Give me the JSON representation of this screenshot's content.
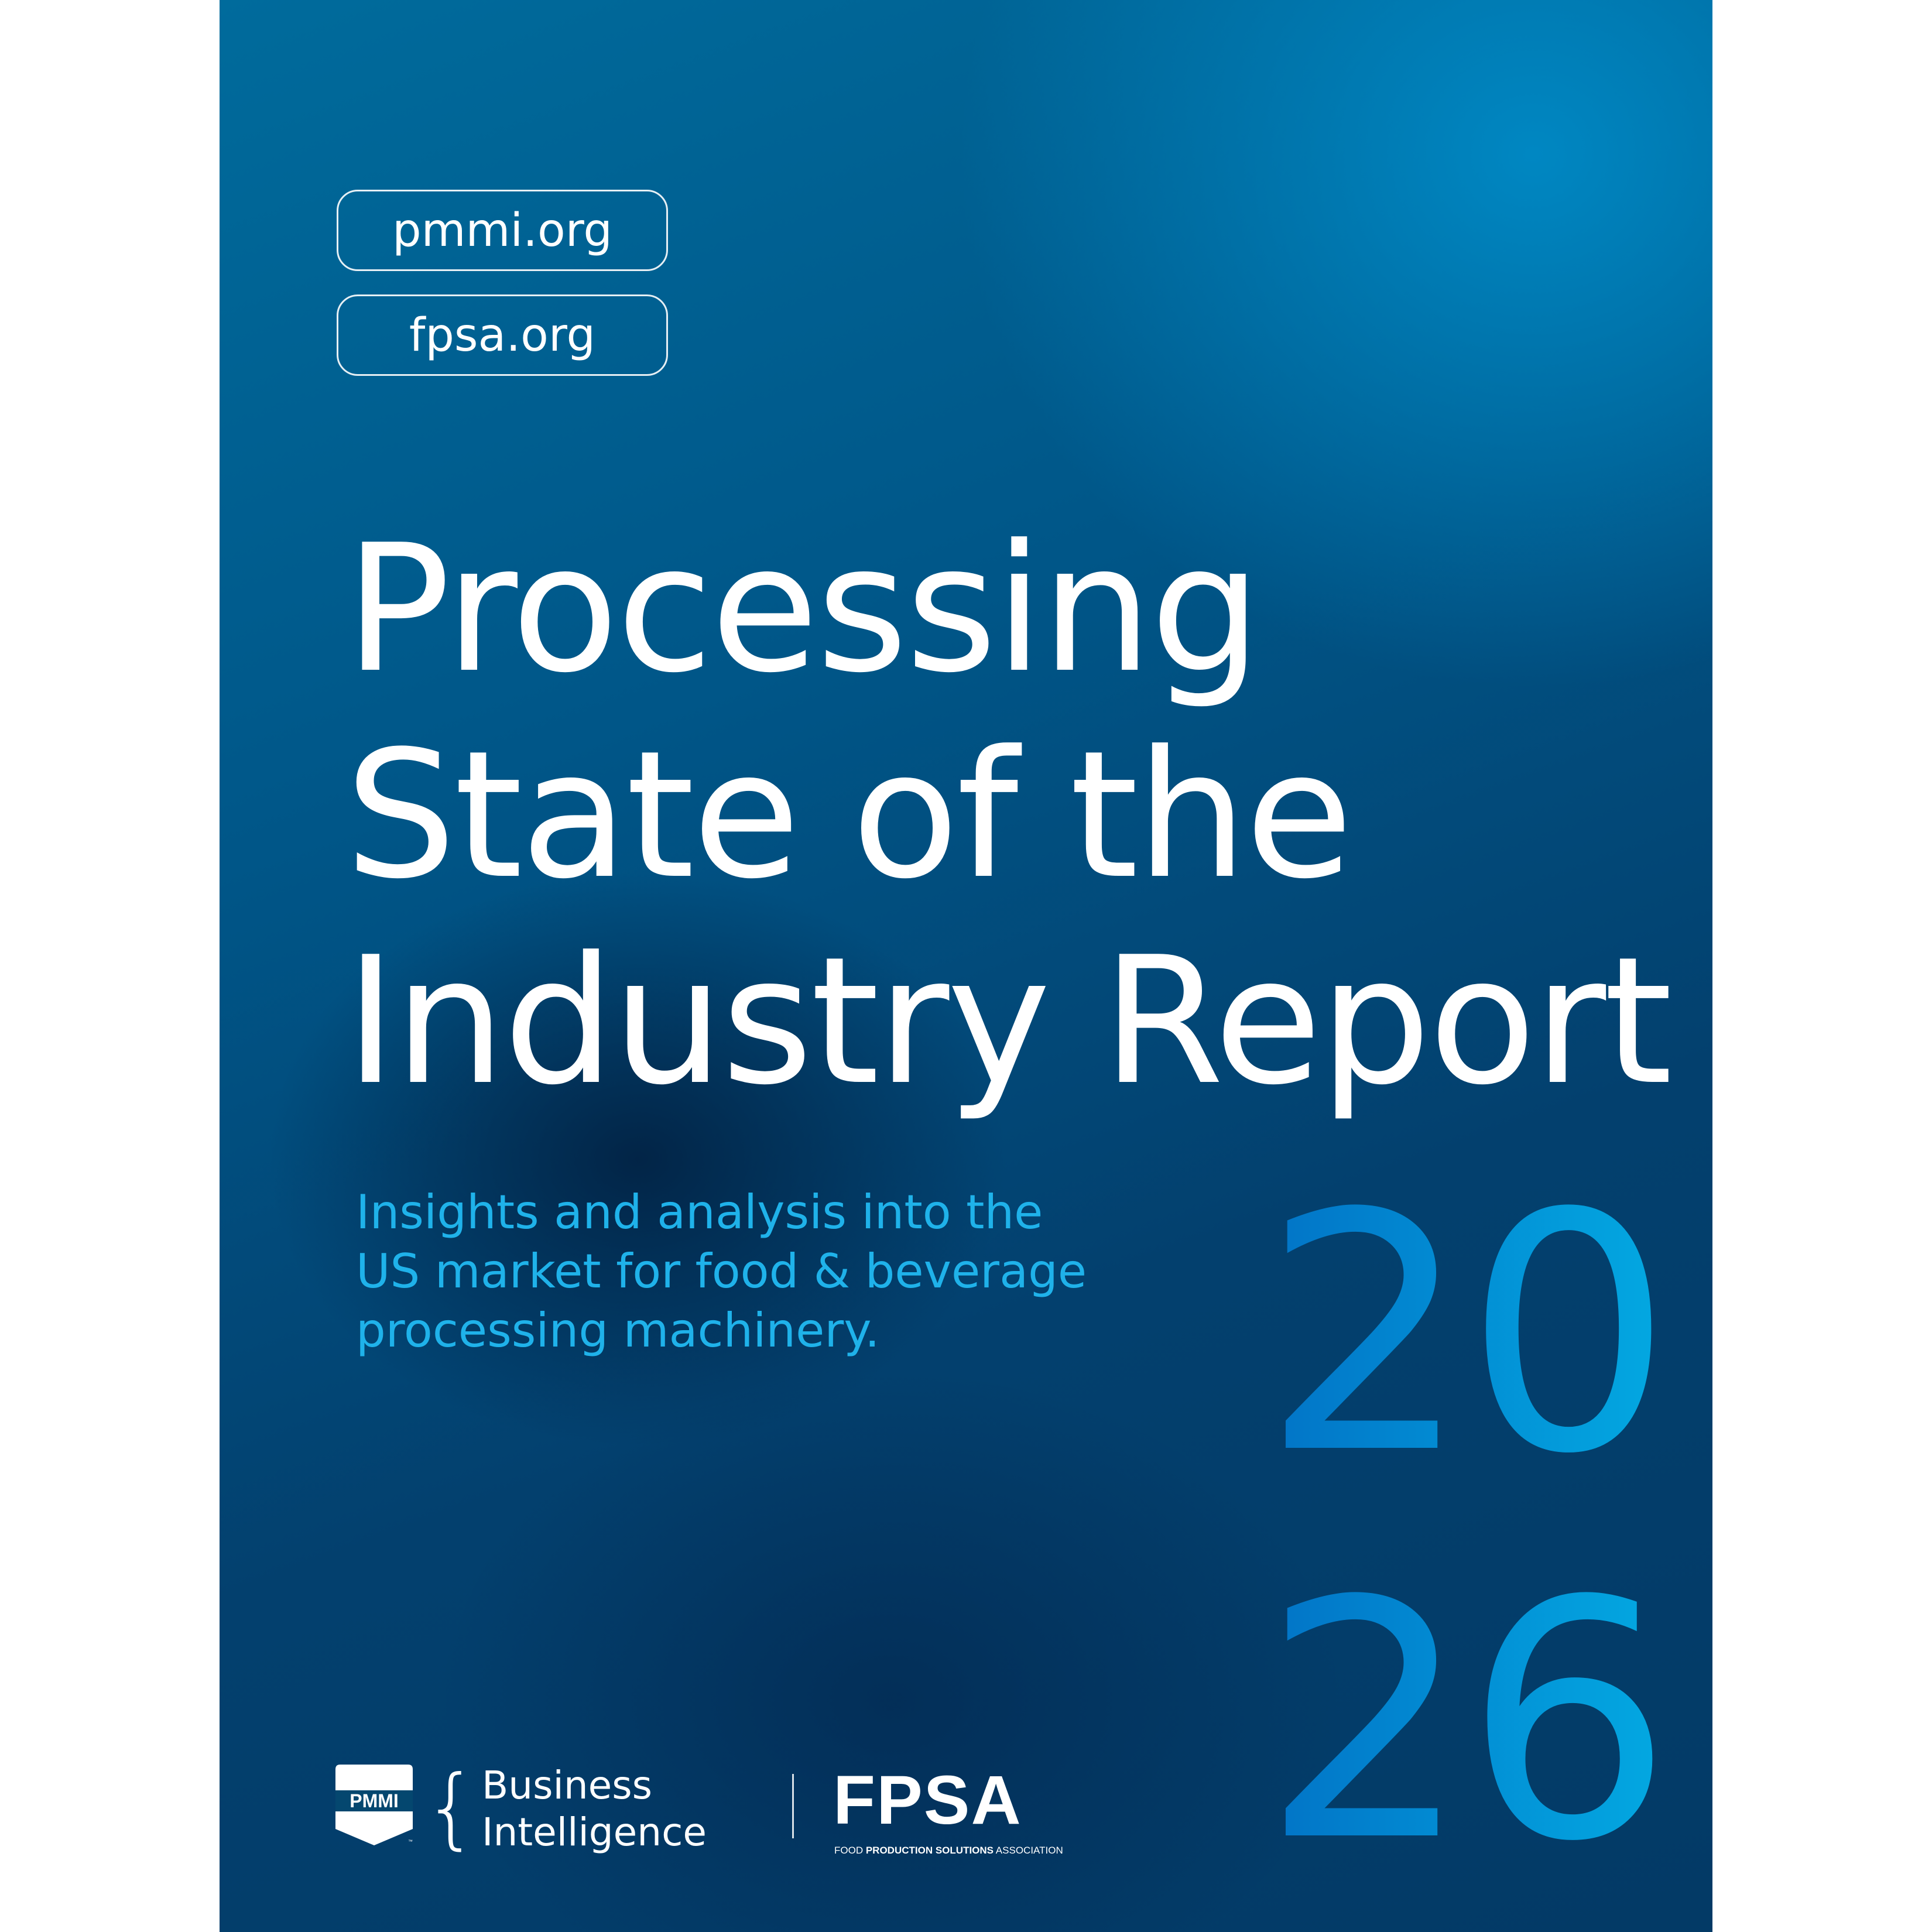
{
  "links": [
    "pmmi.org",
    "fpsa.org"
  ],
  "title_lines": [
    "Processing",
    "State of the",
    "Industry Report"
  ],
  "subtitle_lines": [
    "Insights and analysis into the",
    "US market for food & beverage",
    "processing machinery."
  ],
  "year": {
    "line1": "20",
    "line2": "26"
  },
  "logos": {
    "pmmi": "PMMI",
    "pmmi_tm": "™",
    "business_intelligence": [
      "Business",
      "Intelligence"
    ],
    "fpsa": "FPSA",
    "fpsa_tagline": {
      "food": "FOOD ",
      "bold": "PRODUCTION SOLUTIONS",
      "assoc": " ASSOCIATION"
    }
  },
  "colors": {
    "background_dark": "#033a66",
    "background_light": "#008cc8",
    "subtitle": "#1fb2ea",
    "year_start": "#0273c6",
    "year_end": "#03a9e2"
  }
}
